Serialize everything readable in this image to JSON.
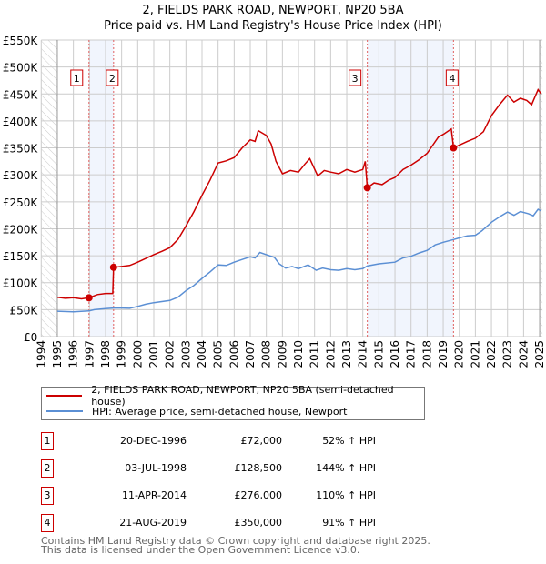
{
  "chart_data": {
    "type": "line",
    "title": "2, FIELDS PARK ROAD, NEWPORT, NP20 5BA",
    "subtitle": "Price paid vs. HM Land Registry's House Price Index (HPI)",
    "xlim": [
      1994,
      2025.17
    ],
    "ylim": [
      0,
      550000
    ],
    "x_ticks": [
      1994,
      1995,
      1996,
      1997,
      1998,
      1999,
      2000,
      2001,
      2002,
      2003,
      2004,
      2005,
      2006,
      2007,
      2008,
      2009,
      2010,
      2011,
      2012,
      2013,
      2014,
      2015,
      2016,
      2017,
      2018,
      2019,
      2020,
      2021,
      2022,
      2023,
      2024,
      2025
    ],
    "y_ticks": [
      {
        "v": 0,
        "label": "£0"
      },
      {
        "v": 50000,
        "label": "£50K"
      },
      {
        "v": 100000,
        "label": "£100K"
      },
      {
        "v": 150000,
        "label": "£150K"
      },
      {
        "v": 200000,
        "label": "£200K"
      },
      {
        "v": 250000,
        "label": "£250K"
      },
      {
        "v": 300000,
        "label": "£300K"
      },
      {
        "v": 350000,
        "label": "£350K"
      },
      {
        "v": 400000,
        "label": "£400K"
      },
      {
        "v": 450000,
        "label": "£450K"
      },
      {
        "v": 500000,
        "label": "£500K"
      },
      {
        "v": 550000,
        "label": "£550K"
      }
    ],
    "grid": true,
    "series": [
      {
        "name": "2, FIELDS PARK ROAD, NEWPORT, NP20 5BA (semi-detached house)",
        "color": "#cc0000",
        "points": [
          [
            1995,
            73000
          ],
          [
            1995.5,
            71000
          ],
          [
            1996,
            72000
          ],
          [
            1996.5,
            70000
          ],
          [
            1996.97,
            72000
          ],
          [
            1997.5,
            78000
          ],
          [
            1998,
            80000
          ],
          [
            1998.45,
            80000
          ],
          [
            1998.5,
            128500
          ],
          [
            1999,
            130000
          ],
          [
            1999.5,
            132000
          ],
          [
            2000,
            138000
          ],
          [
            2000.5,
            145000
          ],
          [
            2001,
            152000
          ],
          [
            2001.5,
            158000
          ],
          [
            2002,
            165000
          ],
          [
            2002.5,
            180000
          ],
          [
            2003,
            205000
          ],
          [
            2003.5,
            232000
          ],
          [
            2004,
            262000
          ],
          [
            2004.5,
            290000
          ],
          [
            2005,
            322000
          ],
          [
            2005.5,
            326000
          ],
          [
            2006,
            332000
          ],
          [
            2006.5,
            350000
          ],
          [
            2007,
            365000
          ],
          [
            2007.3,
            362000
          ],
          [
            2007.5,
            382000
          ],
          [
            2008,
            373000
          ],
          [
            2008.3,
            357000
          ],
          [
            2008.6,
            325000
          ],
          [
            2009,
            302000
          ],
          [
            2009.5,
            308000
          ],
          [
            2010,
            305000
          ],
          [
            2010.4,
            320000
          ],
          [
            2010.7,
            330000
          ],
          [
            2011.2,
            298000
          ],
          [
            2011.6,
            308000
          ],
          [
            2012,
            305000
          ],
          [
            2012.5,
            302000
          ],
          [
            2013,
            310000
          ],
          [
            2013.5,
            305000
          ],
          [
            2014,
            310000
          ],
          [
            2014.15,
            325000
          ],
          [
            2014.28,
            276000
          ],
          [
            2014.7,
            285000
          ],
          [
            2015.2,
            282000
          ],
          [
            2015.6,
            290000
          ],
          [
            2016,
            295000
          ],
          [
            2016.5,
            310000
          ],
          [
            2017,
            318000
          ],
          [
            2017.5,
            328000
          ],
          [
            2018,
            340000
          ],
          [
            2018.7,
            370000
          ],
          [
            2019,
            375000
          ],
          [
            2019.5,
            385000
          ],
          [
            2019.64,
            350000
          ],
          [
            2020,
            355000
          ],
          [
            2020.5,
            362000
          ],
          [
            2021,
            368000
          ],
          [
            2021.5,
            380000
          ],
          [
            2022,
            410000
          ],
          [
            2022.5,
            430000
          ],
          [
            2023,
            448000
          ],
          [
            2023.4,
            435000
          ],
          [
            2023.8,
            442000
          ],
          [
            2024.2,
            438000
          ],
          [
            2024.5,
            430000
          ],
          [
            2024.9,
            458000
          ],
          [
            2025.1,
            450000
          ]
        ]
      },
      {
        "name": "HPI: Average price, semi-detached house, Newport",
        "color": "#5b8fd4",
        "points": [
          [
            1995,
            47000
          ],
          [
            1996,
            46000
          ],
          [
            1996.97,
            47500
          ],
          [
            1997.3,
            50000
          ],
          [
            1998,
            52000
          ],
          [
            1998.5,
            53000
          ],
          [
            1999,
            53000
          ],
          [
            1999.5,
            52500
          ],
          [
            2000,
            56000
          ],
          [
            2000.5,
            60000
          ],
          [
            2001,
            63000
          ],
          [
            2002,
            67000
          ],
          [
            2002.5,
            73000
          ],
          [
            2003,
            85000
          ],
          [
            2003.5,
            95000
          ],
          [
            2004,
            108000
          ],
          [
            2004.5,
            120000
          ],
          [
            2005,
            133000
          ],
          [
            2005.5,
            132000
          ],
          [
            2006,
            138000
          ],
          [
            2006.5,
            143000
          ],
          [
            2007,
            148000
          ],
          [
            2007.3,
            146000
          ],
          [
            2007.6,
            156000
          ],
          [
            2008,
            152000
          ],
          [
            2008.5,
            147000
          ],
          [
            2008.8,
            135000
          ],
          [
            2009.2,
            127000
          ],
          [
            2009.6,
            130000
          ],
          [
            2010,
            126000
          ],
          [
            2010.6,
            133000
          ],
          [
            2011.1,
            123000
          ],
          [
            2011.5,
            127000
          ],
          [
            2012,
            124000
          ],
          [
            2012.5,
            123000
          ],
          [
            2013,
            126000
          ],
          [
            2013.5,
            124000
          ],
          [
            2014,
            126000
          ],
          [
            2014.28,
            131000
          ],
          [
            2015,
            135000
          ],
          [
            2016,
            138000
          ],
          [
            2016.5,
            146000
          ],
          [
            2017,
            149000
          ],
          [
            2017.5,
            155000
          ],
          [
            2018,
            160000
          ],
          [
            2018.5,
            170000
          ],
          [
            2019,
            175000
          ],
          [
            2019.64,
            180000
          ],
          [
            2020,
            183000
          ],
          [
            2020.5,
            187000
          ],
          [
            2021,
            188000
          ],
          [
            2021.4,
            196000
          ],
          [
            2022,
            212000
          ],
          [
            2022.5,
            222000
          ],
          [
            2023,
            231000
          ],
          [
            2023.4,
            225000
          ],
          [
            2023.8,
            232000
          ],
          [
            2024.3,
            228000
          ],
          [
            2024.6,
            224000
          ],
          [
            2024.9,
            236000
          ],
          [
            2025.1,
            233000
          ]
        ]
      }
    ],
    "sales": [
      {
        "num": "1",
        "date": "20-DEC-1996",
        "x": 1996.97,
        "price_value": 72000,
        "price": "£72,000",
        "hpi": "52% ↑ HPI"
      },
      {
        "num": "2",
        "date": "03-JUL-1998",
        "x": 1998.5,
        "price_value": 128500,
        "price": "£128,500",
        "hpi": "144% ↑ HPI"
      },
      {
        "num": "3",
        "date": "11-APR-2014",
        "x": 2014.28,
        "price_value": 276000,
        "price": "£276,000",
        "hpi": "110% ↑ HPI"
      },
      {
        "num": "4",
        "date": "21-AUG-2019",
        "x": 2019.64,
        "price_value": 350000,
        "price": "£350,000",
        "hpi": "91% ↑ HPI"
      }
    ],
    "shaded_ranges": [
      [
        1996.97,
        1998.5
      ],
      [
        2014.28,
        2019.64
      ]
    ],
    "legend_position": "below"
  },
  "footer": {
    "line1": "Contains HM Land Registry data © Crown copyright and database right 2025.",
    "line2": "This data is licensed under the Open Government Licence v3.0."
  }
}
